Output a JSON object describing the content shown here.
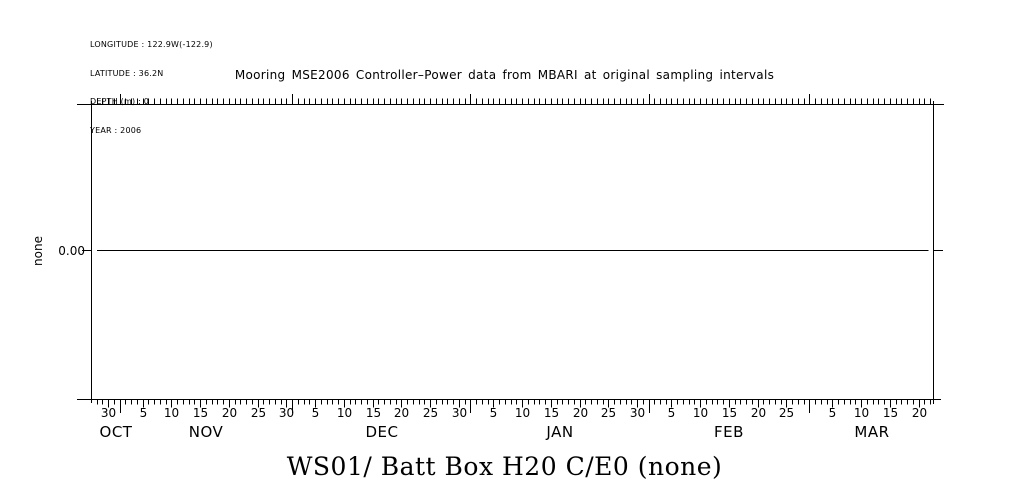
{
  "page": {
    "background": "#ffffff",
    "foreground": "#000000"
  },
  "header": {
    "meta_lines": [
      "LONGITUDE : 122.9W(-122.9)",
      "LATITUDE : 36.2N",
      "DEPTH (m) : 0",
      "YEAR : 2006"
    ],
    "title": "Mooring MSE2006 Controller–Power data from MBARI at original sampling intervals"
  },
  "footer": {
    "instrument_title": "WS01/ Batt Box H20 C/E0 (none)"
  },
  "chart_data": {
    "type": "line",
    "title": "Mooring MSE2006 Controller–Power data from MBARI at original sampling intervals",
    "xlabel": "",
    "ylabel": "none",
    "grid": false,
    "legend": "none",
    "y_ticks": [
      {
        "label": "0.00",
        "value": 0.0
      }
    ],
    "x_axis": {
      "unit": "days",
      "total_days": 146.5,
      "tick_style": {
        "daily": "minor",
        "every_5_days": "medium-labeled",
        "month_boundary": "long"
      },
      "months": [
        {
          "label": "OCT",
          "start_day": -26,
          "visible_from": 0,
          "visible_to": 5,
          "day_labels": [
            30
          ],
          "label_center_day": 4.3
        },
        {
          "label": "NOV",
          "start_day": 5,
          "visible_from": 5,
          "visible_to": 35,
          "day_labels": [
            5,
            10,
            15,
            20,
            25,
            30
          ]
        },
        {
          "label": "DEC",
          "start_day": 35,
          "visible_from": 35,
          "visible_to": 66,
          "day_labels": [
            5,
            10,
            15,
            20,
            25,
            30
          ]
        },
        {
          "label": "JAN",
          "start_day": 66,
          "visible_from": 66,
          "visible_to": 97,
          "day_labels": [
            5,
            10,
            15,
            20,
            25,
            30
          ]
        },
        {
          "label": "FEB",
          "start_day": 97,
          "visible_from": 97,
          "visible_to": 125,
          "day_labels": [
            5,
            10,
            15,
            20,
            25
          ]
        },
        {
          "label": "MAR",
          "start_day": 125,
          "visible_from": 125,
          "visible_to": 146.5,
          "day_labels": [
            5,
            10,
            15,
            20
          ]
        }
      ]
    },
    "series": [
      {
        "name": "WS01/ Batt Box H20 C/E0",
        "units": "none",
        "constant_value": 0.0,
        "x_from_day": 1,
        "x_to_day": 145.6
      }
    ]
  }
}
